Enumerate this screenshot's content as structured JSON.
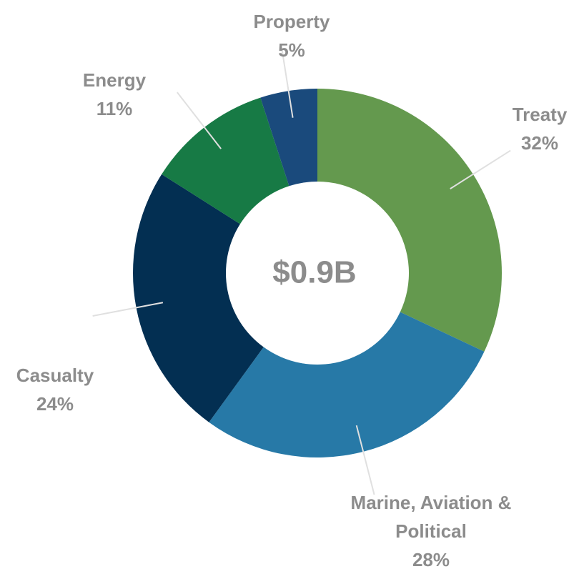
{
  "chart_data": {
    "type": "donut",
    "categories": [
      "Treaty",
      "Marine, Aviation & Political",
      "Casualty",
      "Energy",
      "Property"
    ],
    "values": [
      32,
      28,
      24,
      11,
      5
    ],
    "value_labels": [
      "32%",
      "28%",
      "24%",
      "11%",
      "5%"
    ],
    "colors": [
      "#64994e",
      "#2779a7",
      "#032f52",
      "#177a45",
      "#1a4a7c"
    ],
    "center_label": "$0.9B"
  }
}
